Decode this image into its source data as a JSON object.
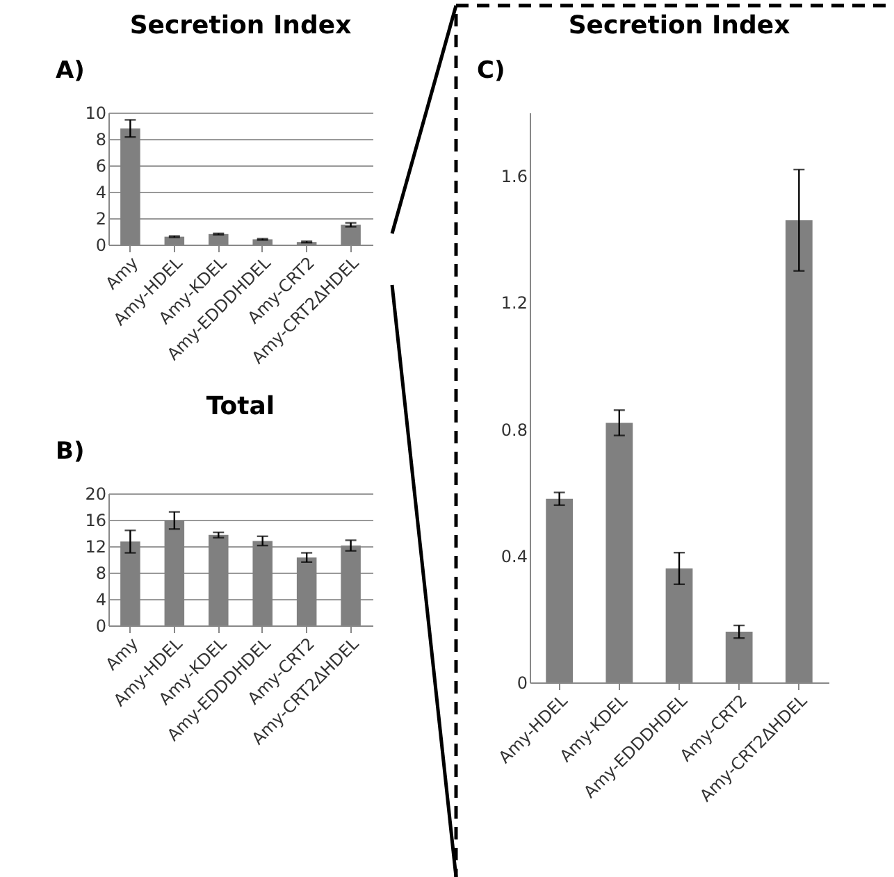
{
  "chart_data": [
    {
      "type": "bar",
      "title": "Secretion Index",
      "annotations": [
        "A)"
      ],
      "categories": [
        "Amy",
        "Amy-HDEL",
        "Amy-KDEL",
        "Amy-EDDDHDEL",
        "Amy-CRT2",
        "Amy-CRT2ΔHDEL"
      ],
      "values": [
        8.8,
        0.6,
        0.8,
        0.4,
        0.2,
        1.5
      ],
      "errors": [
        0.65,
        0.05,
        0.05,
        0.05,
        0.05,
        0.15
      ],
      "color": "#808080",
      "ylim": [
        0,
        10
      ],
      "yticks": [
        0,
        2,
        4,
        6,
        8,
        10
      ],
      "grid": "y"
    },
    {
      "type": "bar",
      "title": "Total",
      "annotations": [
        "B)"
      ],
      "categories": [
        "Amy",
        "Amy-HDEL",
        "Amy-KDEL",
        "Amy-EDDDHDEL",
        "Amy-CRT2",
        "Amy-CRT2ΔHDEL"
      ],
      "values": [
        12.7,
        15.9,
        13.7,
        12.8,
        10.3,
        12.1
      ],
      "errors": [
        1.7,
        1.3,
        0.4,
        0.7,
        0.7,
        0.8
      ],
      "color": "#808080",
      "ylim": [
        0,
        20
      ],
      "yticks": [
        0,
        4,
        8,
        12,
        16,
        20
      ],
      "grid": "y"
    },
    {
      "type": "bar",
      "title": "Secretion Index",
      "annotations": [
        "C)"
      ],
      "categories": [
        "Amy-HDEL",
        "Amy-KDEL",
        "Amy-EDDDHDEL",
        "Amy-CRT2",
        "Amy-CRT2ΔHDEL"
      ],
      "values": [
        0.58,
        0.82,
        0.36,
        0.16,
        1.46
      ],
      "errors": [
        0.02,
        0.04,
        0.05,
        0.02,
        0.16
      ],
      "color": "#808080",
      "ylim": [
        0,
        1.8
      ],
      "yticks": [
        0,
        0.4,
        0.8,
        1.2,
        1.6
      ],
      "grid": false
    }
  ]
}
